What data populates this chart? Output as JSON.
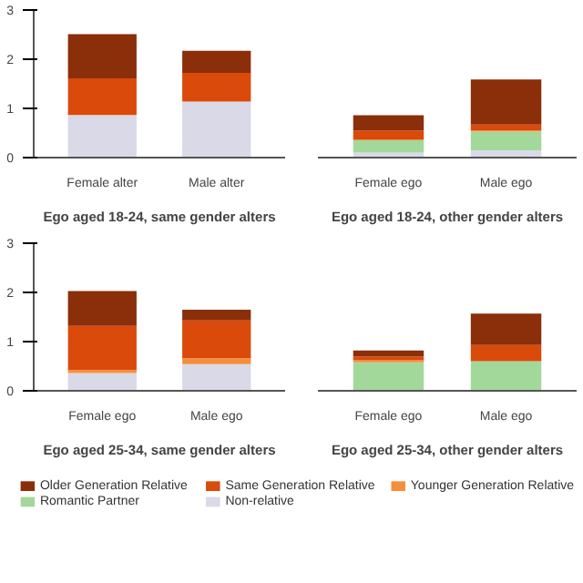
{
  "chart_data": [
    {
      "type": "bar",
      "stacked": true,
      "title": "Ego aged 18-24, same gender alters",
      "categories": [
        "Female alter",
        "Male alter"
      ],
      "ylim": [
        0,
        3
      ],
      "yticks": [
        0,
        1,
        2,
        3
      ],
      "grid": false,
      "legend": "bottom",
      "series": [
        {
          "name": "Non-relative",
          "color": "#d9d9e8",
          "values": [
            0.86,
            1.14
          ]
        },
        {
          "name": "Romantic Partner",
          "color": "#a3d89b",
          "values": [
            0,
            0
          ]
        },
        {
          "name": "Younger Generation Relative",
          "color": "#f58f3c",
          "values": [
            0.01,
            0
          ]
        },
        {
          "name": "Same Generation Relative",
          "color": "#d94a0b",
          "values": [
            0.74,
            0.58
          ]
        },
        {
          "name": "Older Generation Relative",
          "color": "#8b2e0a",
          "values": [
            0.9,
            0.45
          ]
        }
      ]
    },
    {
      "type": "bar",
      "stacked": true,
      "title": "Ego aged 18-24, other gender alters",
      "categories": [
        "Female ego",
        "Male ego"
      ],
      "ylim": [
        0,
        3
      ],
      "tick_labels": "x",
      "grid": false,
      "series": [
        {
          "color": "#d9d9e8",
          "values": [
            0.1,
            0.15
          ]
        },
        {
          "color": "#a3d89b",
          "values": [
            0.25,
            0.38
          ]
        },
        {
          "color": "#f58f3c",
          "values": [
            0.02,
            0.02
          ]
        },
        {
          "color": "#d94a0b",
          "values": [
            0.18,
            0.12
          ]
        },
        {
          "color": "#8b2e0a",
          "values": [
            0.31,
            0.92
          ]
        }
      ]
    },
    {
      "type": "bar",
      "stacked": true,
      "title": "Ego aged 25-34, same gender alters",
      "categories": [
        "Female ego",
        "Male ego"
      ],
      "ylim": [
        0,
        3
      ],
      "yticks": [
        0,
        1,
        2,
        3
      ],
      "grid": false,
      "series": [
        {
          "color": "#d9d9e8",
          "values": [
            0.36,
            0.54
          ]
        },
        {
          "color": "#a3d89b",
          "values": [
            0,
            0
          ]
        },
        {
          "color": "#f58f3c",
          "values": [
            0.06,
            0.12
          ]
        },
        {
          "color": "#d94a0b",
          "values": [
            0.9,
            0.77
          ]
        },
        {
          "color": "#8b2e0a",
          "values": [
            0.71,
            0.22
          ]
        }
      ]
    },
    {
      "type": "bar",
      "stacked": true,
      "title": "Ego aged 25-34, other gender alters",
      "categories": [
        "Female ego",
        "Male ego"
      ],
      "ylim": [
        0,
        3
      ],
      "tick_labels": "x",
      "grid": false,
      "series": [
        {
          "color": "#d9d9e8",
          "values": [
            0,
            0
          ]
        },
        {
          "color": "#a3d89b",
          "values": [
            0.58,
            0.6
          ]
        },
        {
          "color": "#f58f3c",
          "values": [
            0.04,
            0
          ]
        },
        {
          "color": "#d94a0b",
          "values": [
            0.08,
            0.33
          ]
        },
        {
          "color": "#8b2e0a",
          "values": [
            0.12,
            0.64
          ]
        }
      ]
    }
  ]
}
